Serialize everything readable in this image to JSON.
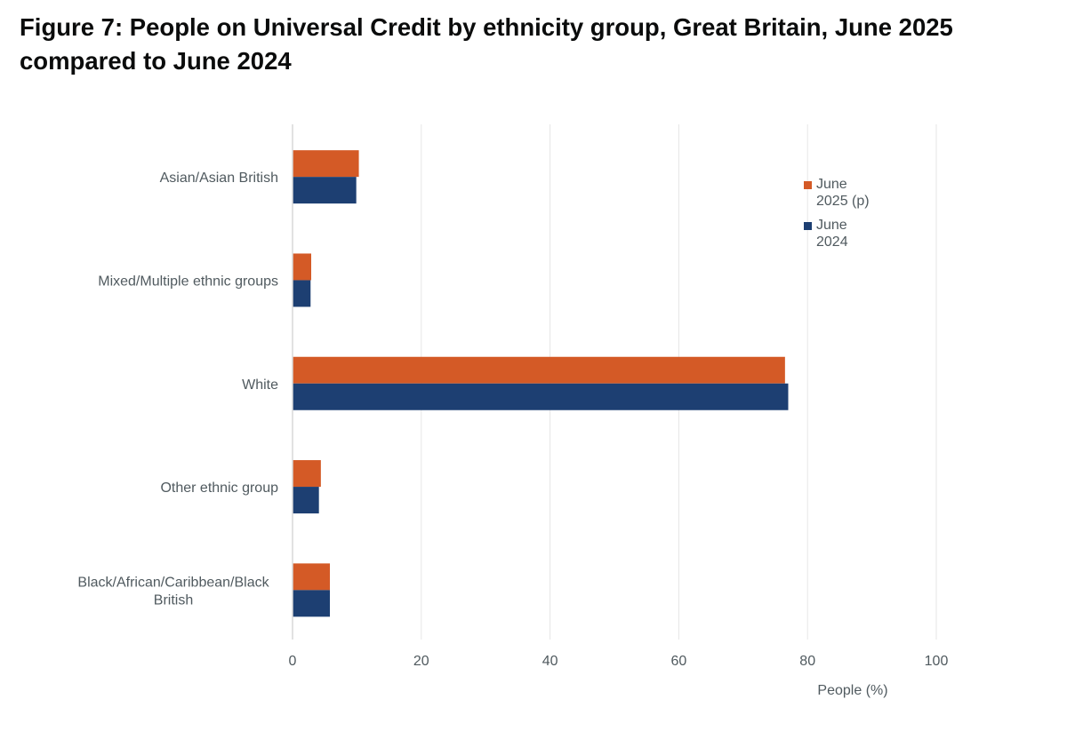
{
  "title_line1": "Figure 7: People on Universal Credit by ethnicity group, Great Britain, June 2025",
  "title_line2": "compared to June 2024",
  "colors": {
    "june_2025": "#D45A26",
    "june_2024": "#1D3F72",
    "grid": "#E6E6E6",
    "axis": "#D9D9D9",
    "text": "#505A5F"
  },
  "chart_data": {
    "type": "bar",
    "orientation": "horizontal",
    "title": "Figure 7: People on Universal Credit by ethnicity group, Great Britain, June 2025 compared to June 2024",
    "xlabel": "People (%)",
    "ylabel": "",
    "xlim": [
      0,
      100
    ],
    "xticks": [
      0,
      20,
      40,
      60,
      80,
      100
    ],
    "grid": true,
    "legend_position": "right",
    "categories": [
      [
        "Asian/Asian British"
      ],
      [
        "Mixed/Multiple ethnic groups"
      ],
      [
        "White"
      ],
      [
        "Other ethnic group"
      ],
      [
        "Black/African/Caribbean/Black",
        "British"
      ]
    ],
    "series": [
      {
        "name": [
          "June",
          "2025 (p)"
        ],
        "color_key": "june_2025",
        "values": [
          10.3,
          2.9,
          76.5,
          4.4,
          5.8
        ]
      },
      {
        "name": [
          "June",
          "2024"
        ],
        "color_key": "june_2024",
        "values": [
          9.9,
          2.8,
          77.0,
          4.1,
          5.8
        ]
      }
    ]
  }
}
